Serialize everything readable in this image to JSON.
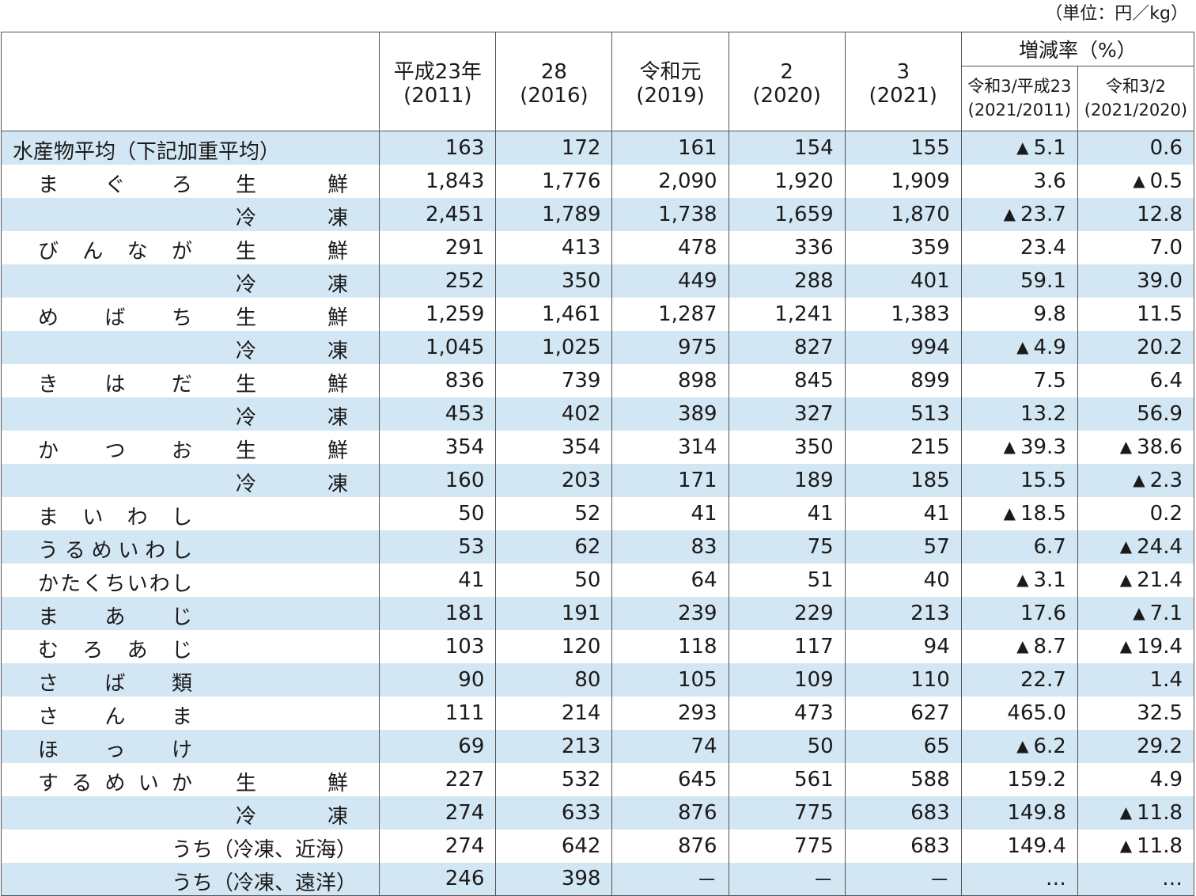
{
  "unit_note": "（単位：円／kg）",
  "header": {
    "years": [
      {
        "l1": "平成23年",
        "l2": "(2011)"
      },
      {
        "l1": "28",
        "l2": "(2016)"
      },
      {
        "l1": "令和元",
        "l2": "(2019)"
      },
      {
        "l1": "2",
        "l2": "(2020)"
      },
      {
        "l1": "3",
        "l2": "(2021)"
      }
    ],
    "rate_title": "増減率（%）",
    "rate_cols": [
      {
        "l1": "令和3/平成23",
        "l2": "(2021/2011)"
      },
      {
        "l1": "令和3/2",
        "l2": "(2021/2020)"
      }
    ]
  },
  "rows": [
    {
      "avg": "水産物平均（下記加重平均）",
      "v": [
        "163",
        "172",
        "161",
        "154",
        "155"
      ],
      "r1": "5.1",
      "r1neg": true,
      "r2": "0.6",
      "r2neg": false
    },
    {
      "name": "まぐろ",
      "type": "生鮮",
      "v": [
        "1,843",
        "1,776",
        "2,090",
        "1,920",
        "1,909"
      ],
      "r1": "3.6",
      "r1neg": false,
      "r2": "0.5",
      "r2neg": true
    },
    {
      "name": "",
      "type": "冷凍",
      "v": [
        "2,451",
        "1,789",
        "1,738",
        "1,659",
        "1,870"
      ],
      "r1": "23.7",
      "r1neg": true,
      "r2": "12.8",
      "r2neg": false
    },
    {
      "name": "びんなが",
      "type": "生鮮",
      "v": [
        "291",
        "413",
        "478",
        "336",
        "359"
      ],
      "r1": "23.4",
      "r1neg": false,
      "r2": "7.0",
      "r2neg": false
    },
    {
      "name": "",
      "type": "冷凍",
      "v": [
        "252",
        "350",
        "449",
        "288",
        "401"
      ],
      "r1": "59.1",
      "r1neg": false,
      "r2": "39.0",
      "r2neg": false
    },
    {
      "name": "めばち",
      "type": "生鮮",
      "v": [
        "1,259",
        "1,461",
        "1,287",
        "1,241",
        "1,383"
      ],
      "r1": "9.8",
      "r1neg": false,
      "r2": "11.5",
      "r2neg": false
    },
    {
      "name": "",
      "type": "冷凍",
      "v": [
        "1,045",
        "1,025",
        "975",
        "827",
        "994"
      ],
      "r1": "4.9",
      "r1neg": true,
      "r2": "20.2",
      "r2neg": false
    },
    {
      "name": "きはだ",
      "type": "生鮮",
      "v": [
        "836",
        "739",
        "898",
        "845",
        "899"
      ],
      "r1": "7.5",
      "r1neg": false,
      "r2": "6.4",
      "r2neg": false
    },
    {
      "name": "",
      "type": "冷凍",
      "v": [
        "453",
        "402",
        "389",
        "327",
        "513"
      ],
      "r1": "13.2",
      "r1neg": false,
      "r2": "56.9",
      "r2neg": false
    },
    {
      "name": "かつお",
      "type": "生鮮",
      "v": [
        "354",
        "354",
        "314",
        "350",
        "215"
      ],
      "r1": "39.3",
      "r1neg": true,
      "r2": "38.6",
      "r2neg": true
    },
    {
      "name": "",
      "type": "冷凍",
      "v": [
        "160",
        "203",
        "171",
        "189",
        "185"
      ],
      "r1": "15.5",
      "r1neg": false,
      "r2": "2.3",
      "r2neg": true
    },
    {
      "name": "まいわし",
      "type": "",
      "v": [
        "50",
        "52",
        "41",
        "41",
        "41"
      ],
      "r1": "18.5",
      "r1neg": true,
      "r2": "0.2",
      "r2neg": false
    },
    {
      "name": "うるめいわし",
      "type": "",
      "v": [
        "53",
        "62",
        "83",
        "75",
        "57"
      ],
      "r1": "6.7",
      "r1neg": false,
      "r2": "24.4",
      "r2neg": true
    },
    {
      "name": "かたくちいわし",
      "type": "",
      "v": [
        "41",
        "50",
        "64",
        "51",
        "40"
      ],
      "r1": "3.1",
      "r1neg": true,
      "r2": "21.4",
      "r2neg": true
    },
    {
      "name": "まあじ",
      "type": "",
      "v": [
        "181",
        "191",
        "239",
        "229",
        "213"
      ],
      "r1": "17.6",
      "r1neg": false,
      "r2": "7.1",
      "r2neg": true
    },
    {
      "name": "むろあじ",
      "type": "",
      "v": [
        "103",
        "120",
        "118",
        "117",
        "94"
      ],
      "r1": "8.7",
      "r1neg": true,
      "r2": "19.4",
      "r2neg": true
    },
    {
      "name": "さば類",
      "type": "",
      "v": [
        "90",
        "80",
        "105",
        "109",
        "110"
      ],
      "r1": "22.7",
      "r1neg": false,
      "r2": "1.4",
      "r2neg": false
    },
    {
      "name": "さんま",
      "type": "",
      "v": [
        "111",
        "214",
        "293",
        "473",
        "627"
      ],
      "r1": "465.0",
      "r1neg": false,
      "r2": "32.5",
      "r2neg": false
    },
    {
      "name": "ほっけ",
      "type": "",
      "v": [
        "69",
        "213",
        "74",
        "50",
        "65"
      ],
      "r1": "6.2",
      "r1neg": true,
      "r2": "29.2",
      "r2neg": false
    },
    {
      "name": "するめいか",
      "type": "生鮮",
      "v": [
        "227",
        "532",
        "645",
        "561",
        "588"
      ],
      "r1": "159.2",
      "r1neg": false,
      "r2": "4.9",
      "r2neg": false
    },
    {
      "name": "",
      "type": "冷凍",
      "v": [
        "274",
        "633",
        "876",
        "775",
        "683"
      ],
      "r1": "149.8",
      "r1neg": false,
      "r2": "11.8",
      "r2neg": true
    },
    {
      "sub": "うち（冷凍、近海）",
      "v": [
        "274",
        "642",
        "876",
        "775",
        "683"
      ],
      "r1": "149.4",
      "r1neg": false,
      "r2": "11.8",
      "r2neg": true
    },
    {
      "sub": "うち（冷凍、遠洋）",
      "v": [
        "246",
        "398",
        "－",
        "－",
        "－"
      ],
      "r1": "…",
      "r1neg": false,
      "r2": "…",
      "r2neg": false
    }
  ]
}
